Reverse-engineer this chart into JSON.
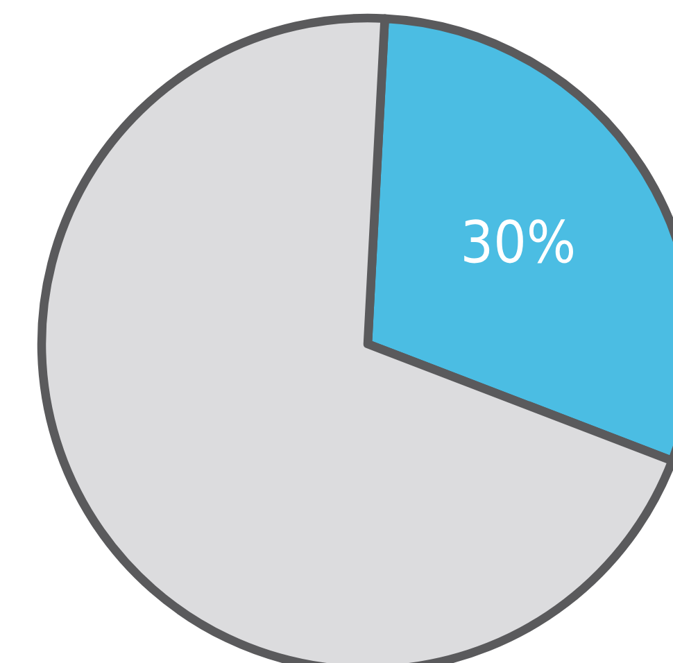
{
  "chart_data": {
    "type": "pie",
    "categories": [
      null,
      null
    ],
    "values": [
      30,
      70
    ],
    "colors": [
      "#4bbde3",
      "#dcdcde"
    ],
    "value_labels": [
      "30%",
      null
    ]
  }
}
